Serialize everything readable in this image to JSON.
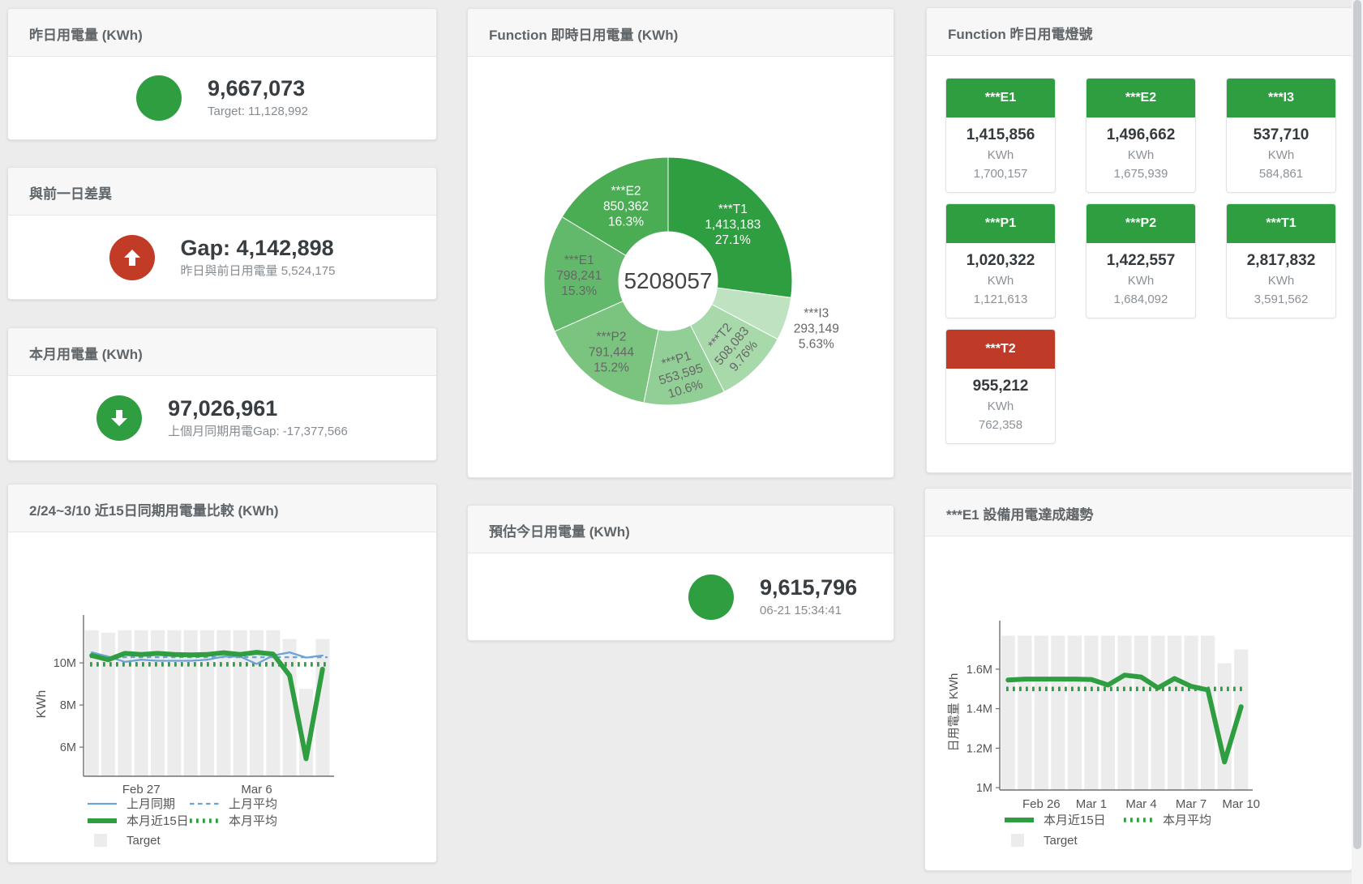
{
  "colors": {
    "green": "#2e9e41",
    "red": "#c13b27",
    "tile_green": "#2e9e41",
    "tile_red": "#bf3b28",
    "blue_line": "#6ba3d6",
    "bar_gray": "#ececec"
  },
  "cards": {
    "yesterday": {
      "title": "昨日用電量 (KWh)",
      "value": "9,667,073",
      "sub": "Target: 11,128,992"
    },
    "diff_prev": {
      "title": "與前一日差異",
      "value": "Gap: 4,142,898",
      "sub": "昨日與前日用電量 5,524,175"
    },
    "month": {
      "title": "本月用電量 (KWh)",
      "value": "97,026,961",
      "sub": "上個月同期用電Gap: -17,377,566"
    },
    "realtime": {
      "title": "Function 即時日用電量 (KWh)"
    },
    "lights": {
      "title": "Function 昨日用電燈號",
      "tiles": [
        {
          "name": "***E1",
          "value": "1,415,856",
          "unit": "KWh",
          "target": "1,700,157",
          "status": "green"
        },
        {
          "name": "***E2",
          "value": "1,496,662",
          "unit": "KWh",
          "target": "1,675,939",
          "status": "green"
        },
        {
          "name": "***I3",
          "value": "537,710",
          "unit": "KWh",
          "target": "584,861",
          "status": "green"
        },
        {
          "name": "***P1",
          "value": "1,020,322",
          "unit": "KWh",
          "target": "1,121,613",
          "status": "green"
        },
        {
          "name": "***P2",
          "value": "1,422,557",
          "unit": "KWh",
          "target": "1,684,092",
          "status": "green"
        },
        {
          "name": "***T1",
          "value": "2,817,832",
          "unit": "KWh",
          "target": "3,591,562",
          "status": "green"
        },
        {
          "name": "***T2",
          "value": "955,212",
          "unit": "KWh",
          "target": "762,358",
          "status": "red"
        }
      ]
    },
    "compare": {
      "title": "2/24~3/10 近15日同期用電量比較 (KWh)"
    },
    "estimate": {
      "title": "預估今日用電量 (KWh)",
      "value": "9,615,796",
      "sub": "06-21 15:34:41"
    },
    "e1trend": {
      "title": "***E1 設備用電達成趨勢"
    }
  },
  "chart_data": [
    {
      "type": "pie",
      "title": "Function 即時日用電量 (KWh)",
      "center_total": "5208057",
      "slices": [
        {
          "name": "***T1",
          "value": 1413183,
          "value_label": "1,413,183",
          "pct": 27.1,
          "pct_label": "27.1%",
          "color": "#2e9e41",
          "text_color": "#ffffff",
          "label_r": 106
        },
        {
          "name": "***I3",
          "value": 293149,
          "value_label": "293,149",
          "pct": 5.63,
          "pct_label": "5.63%",
          "color": "#bfe3c1",
          "text_color": "#666666",
          "label_r": 192,
          "outside": true
        },
        {
          "name": "***T2",
          "value": 508083,
          "value_label": "508,083",
          "pct": 9.76,
          "pct_label": "9.76%",
          "color": "#a8d9ab",
          "text_color": "#666666",
          "label_r": 112,
          "rotate": -50
        },
        {
          "name": "***P1",
          "value": 553595,
          "value_label": "553,595",
          "pct": 10.6,
          "pct_label": "10.6%",
          "color": "#92cf96",
          "text_color": "#666666",
          "label_r": 116,
          "rotate": -17
        },
        {
          "name": "***P2",
          "value": 791444,
          "value_label": "791,444",
          "pct": 15.2,
          "pct_label": "15.2%",
          "color": "#7ac47f",
          "text_color": "#666666",
          "label_r": 112
        },
        {
          "name": "***E1",
          "value": 798241,
          "value_label": "798,241",
          "pct": 15.3,
          "pct_label": "15.3%",
          "color": "#63b96b",
          "text_color": "#666666",
          "label_r": 110
        },
        {
          "name": "***E2",
          "value": 850362,
          "value_label": "850,362",
          "pct": 16.3,
          "pct_label": "16.3%",
          "color": "#4aad54",
          "text_color": "#ffffff",
          "label_r": 106
        }
      ]
    },
    {
      "type": "bar+line",
      "title": "2/24~3/10 近15日同期用電量比較 (KWh)",
      "ylabel": "KWh",
      "categories": [
        "2/24",
        "2/25",
        "2/26",
        "2/27",
        "2/28",
        "3/1",
        "3/2",
        "3/3",
        "3/4",
        "3/5",
        "3/6",
        "3/7",
        "3/8",
        "3/9",
        "3/10"
      ],
      "x_ticks": [
        {
          "i": 3,
          "label": "Feb 27"
        },
        {
          "i": 10,
          "label": "Mar 6"
        }
      ],
      "y_ticks": [
        {
          "v": 6000000,
          "label": "6M"
        },
        {
          "v": 8000000,
          "label": "8M"
        },
        {
          "v": 10000000,
          "label": "10M"
        }
      ],
      "ylim": [
        4620000,
        11580000
      ],
      "series": [
        {
          "name": "Target",
          "type": "bar",
          "color": "#ececec",
          "values": [
            11550000,
            11430000,
            11550000,
            11550000,
            11550000,
            11550000,
            11550000,
            11550000,
            11550000,
            11550000,
            11550000,
            11550000,
            11130000,
            8770000,
            11130000
          ]
        },
        {
          "name": "上月同期",
          "type": "line",
          "color": "#6ba3d6",
          "width": 2.3,
          "values": [
            10500000,
            10300000,
            10050000,
            10150000,
            10100000,
            10100000,
            10100000,
            10150000,
            10300000,
            10300000,
            9950000,
            10350000,
            10500000,
            10250000,
            10350000
          ]
        },
        {
          "name": "上月平均",
          "type": "line",
          "style": "dashed",
          "color": "#6ba3d6",
          "width": 2.3,
          "constant": 10270000
        },
        {
          "name": "本月近15日",
          "type": "line",
          "color": "#2e9e41",
          "width": 6,
          "values": [
            10350000,
            10150000,
            10450000,
            10400000,
            10450000,
            10400000,
            10380000,
            10400000,
            10480000,
            10400000,
            10500000,
            10420000,
            9400000,
            5450000,
            9700000
          ]
        },
        {
          "name": "本月平均",
          "type": "line",
          "style": "dotted",
          "color": "#2e9e41",
          "width": 5.5,
          "constant": 9930000
        }
      ],
      "legend_rows": [
        [
          "上月同期",
          "上月平均"
        ],
        [
          "本月近15日",
          "本月平均"
        ],
        [
          "Target"
        ]
      ]
    },
    {
      "type": "bar+line",
      "title": "***E1 設備用電達成趨勢",
      "ylabel": "日用電量 KWh",
      "categories": [
        "2/24",
        "2/25",
        "2/26",
        "2/27",
        "2/28",
        "3/1",
        "3/2",
        "3/3",
        "3/4",
        "3/5",
        "3/6",
        "3/7",
        "3/8",
        "3/9",
        "3/10"
      ],
      "x_ticks": [
        {
          "i": 2,
          "label": "Feb 26"
        },
        {
          "i": 5,
          "label": "Mar 1"
        },
        {
          "i": 8,
          "label": "Mar 4"
        },
        {
          "i": 11,
          "label": "Mar 7"
        },
        {
          "i": 14,
          "label": "Mar 10"
        }
      ],
      "y_ticks": [
        {
          "v": 1000000,
          "label": "1M"
        },
        {
          "v": 1200000,
          "label": "1.2M"
        },
        {
          "v": 1400000,
          "label": "1.4M"
        },
        {
          "v": 1600000,
          "label": "1.6M"
        }
      ],
      "ylim": [
        988000,
        1772000
      ],
      "series": [
        {
          "name": "Target",
          "type": "bar",
          "color": "#ececec",
          "values": [
            1770000,
            1770000,
            1770000,
            1770000,
            1770000,
            1770000,
            1770000,
            1770000,
            1770000,
            1770000,
            1770000,
            1770000,
            1770000,
            1630000,
            1700000
          ]
        },
        {
          "name": "本月近15日",
          "type": "line",
          "color": "#2e9e41",
          "width": 6,
          "values": [
            1545000,
            1550000,
            1550000,
            1550000,
            1550000,
            1548000,
            1520000,
            1570000,
            1560000,
            1505000,
            1553000,
            1513000,
            1495000,
            1130000,
            1410000
          ]
        },
        {
          "name": "本月平均",
          "type": "line",
          "style": "dotted",
          "color": "#2e9e41",
          "width": 5.5,
          "constant": 1500000
        }
      ],
      "legend_rows": [
        [
          "本月近15日",
          "本月平均"
        ],
        [
          "Target"
        ]
      ]
    }
  ]
}
